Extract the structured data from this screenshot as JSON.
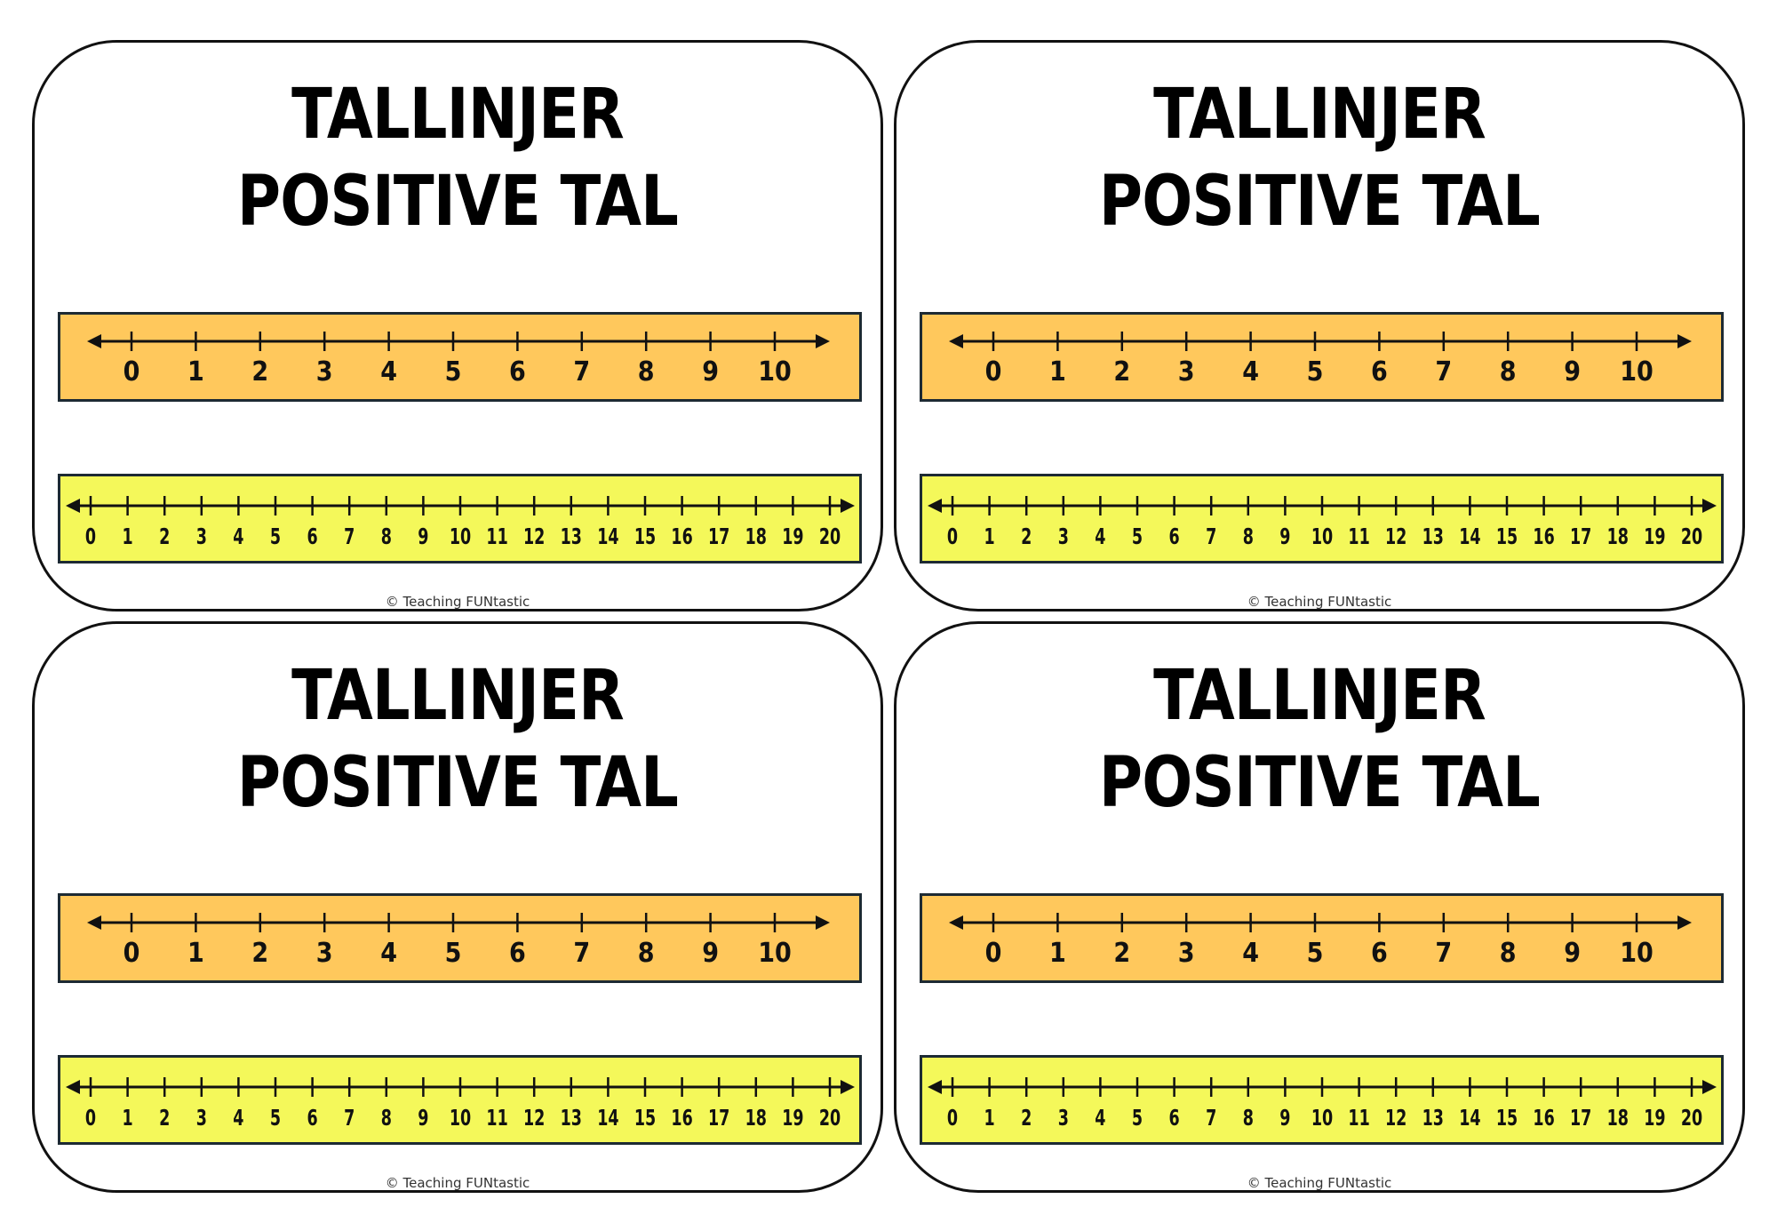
{
  "cards": [
    {
      "title_line1": "TALLINJER",
      "title_line2": "POSITIVE TAL",
      "footer": "© Teaching FUNtastic"
    },
    {
      "title_line1": "TALLINJER",
      "title_line2": "POSITIVE TAL",
      "footer": "© Teaching FUNtastic"
    },
    {
      "title_line1": "TALLINJER",
      "title_line2": "POSITIVE TAL",
      "footer": "© Teaching FUNtastic"
    },
    {
      "title_line1": "TALLINJER",
      "title_line2": "POSITIVE TAL",
      "footer": "© Teaching FUNtastic"
    }
  ],
  "number_lines": {
    "line_0_10": {
      "min": 0,
      "max": 10,
      "color": "#FFC85C"
    },
    "line_0_20": {
      "min": 0,
      "max": 20,
      "color": "#F4F85A"
    }
  },
  "colors": {
    "border": "#1d2a33",
    "ink": "#111111"
  }
}
